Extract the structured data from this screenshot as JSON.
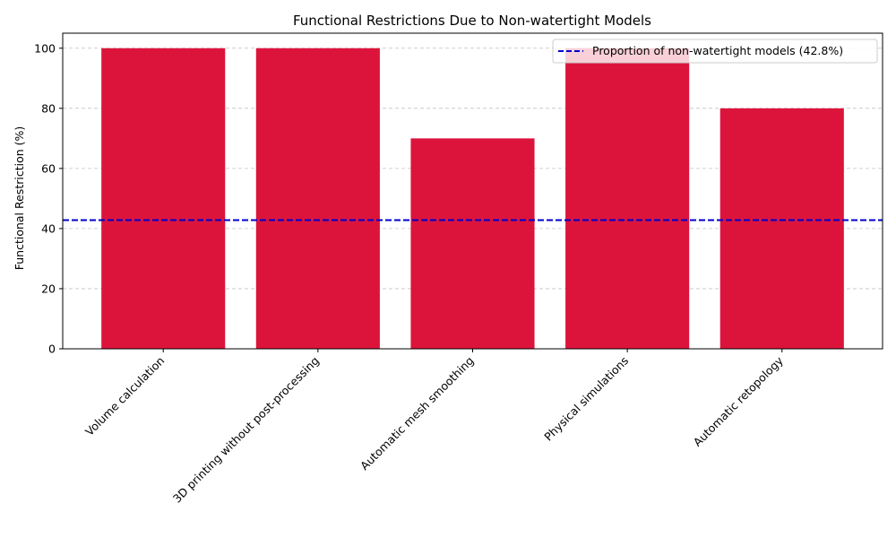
{
  "chart_data": {
    "type": "bar",
    "title": "Functional Restrictions Due to Non-watertight Models",
    "xlabel": "",
    "ylabel": "Functional Restriction (%)",
    "categories": [
      "Volume calculation",
      "3D printing without post-processing",
      "Automatic mesh smoothing",
      "Physical simulations",
      "Automatic retopology"
    ],
    "values": [
      100,
      100,
      70,
      100,
      80
    ],
    "ylim": [
      0,
      105
    ],
    "yticks": [
      0,
      20,
      40,
      60,
      80,
      100
    ],
    "grid": "y-axis, dashed",
    "bar_color": "#dc143c",
    "reference_line": {
      "value": 42.8,
      "label": "Proportion of non-watertight models (42.8%)",
      "color": "#0000cd",
      "style": "dashed"
    },
    "legend_placement": "top-right"
  }
}
